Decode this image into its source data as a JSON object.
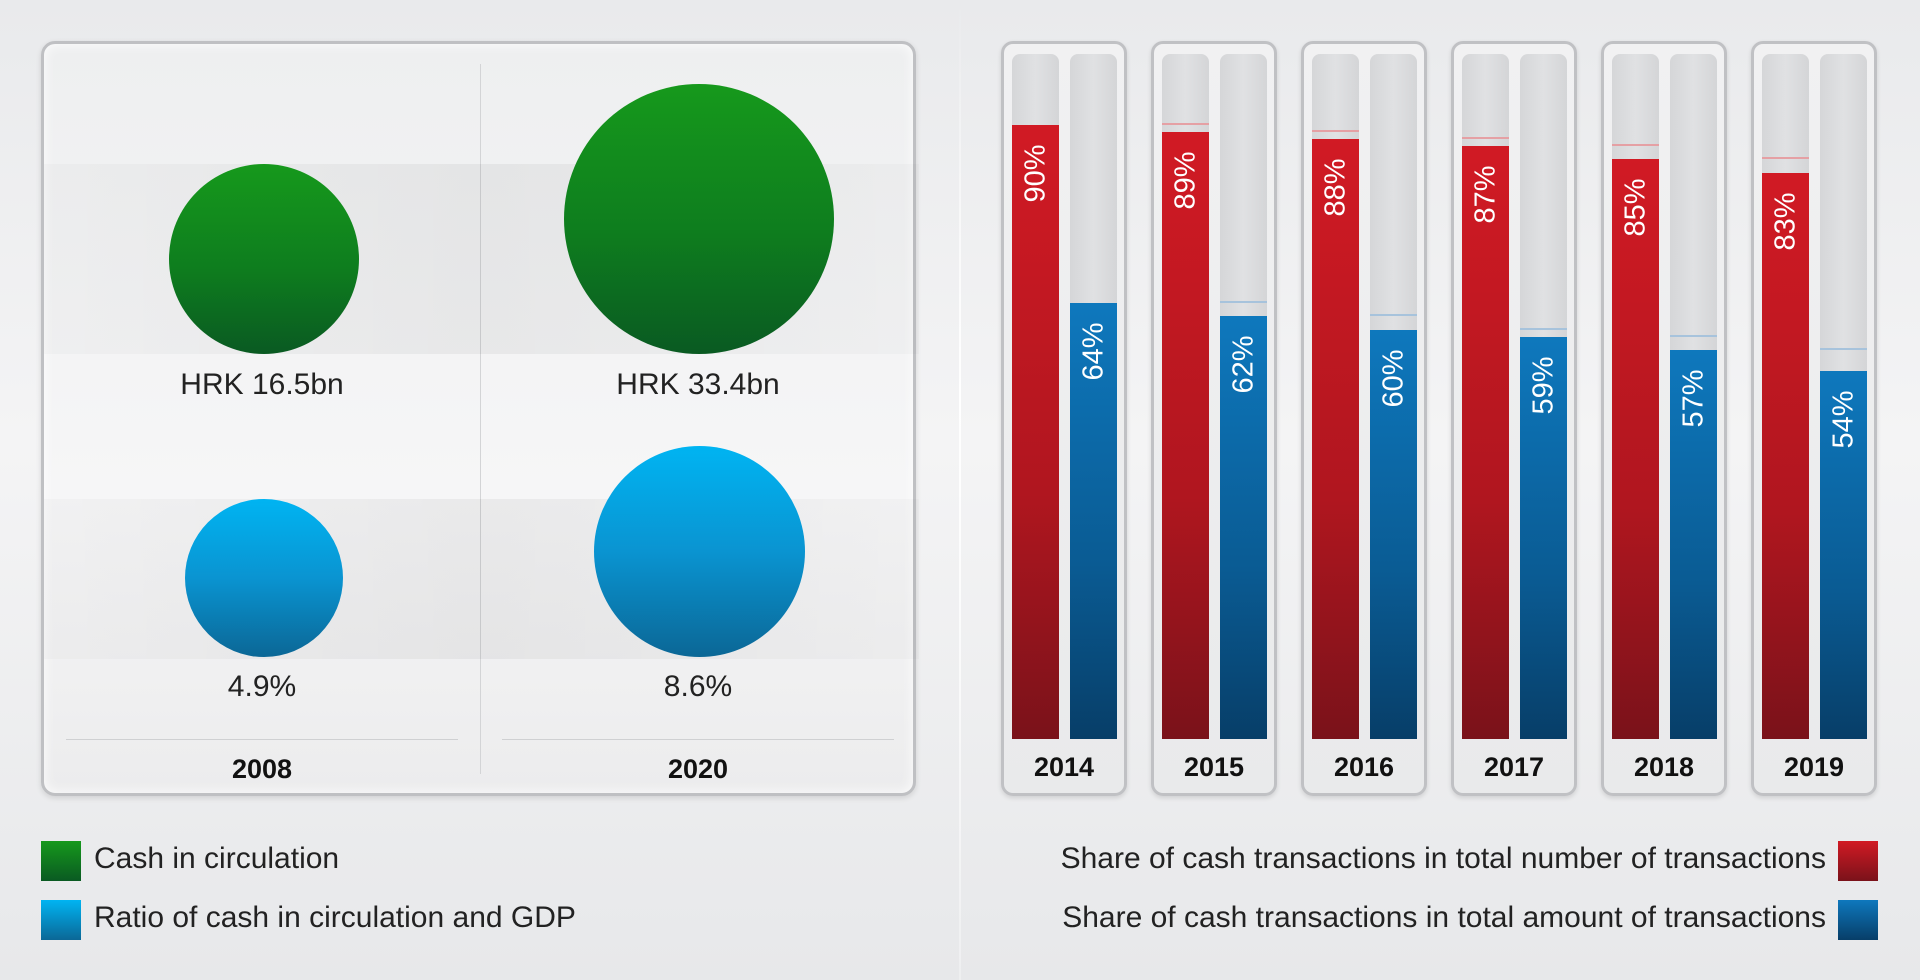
{
  "chart_data": [
    {
      "type": "bubble",
      "categories": [
        "2008",
        "2020"
      ],
      "series": [
        {
          "name": "Cash in circulation",
          "values": [
            16.5,
            33.4
          ],
          "labels": [
            "HRK 16.5bn",
            "HRK 33.4bn"
          ],
          "color": "#0e7d1e"
        },
        {
          "name": "Ratio of cash in circulation and GDP",
          "values": [
            4.9,
            8.6
          ],
          "labels": [
            "4.9%",
            "8.6%"
          ],
          "color": "#0a94d1"
        }
      ]
    },
    {
      "type": "bar",
      "categories": [
        "2014",
        "2015",
        "2016",
        "2017",
        "2018",
        "2019"
      ],
      "ylim": [
        0,
        100
      ],
      "series": [
        {
          "name": "Share of cash transactions in total number of transactions",
          "values": [
            90,
            89,
            88,
            87,
            85,
            83
          ],
          "labels": [
            "90%",
            "89%",
            "88%",
            "87%",
            "85%",
            "83%"
          ],
          "color": "#c4161f"
        },
        {
          "name": "Share of cash transactions in total amount of transactions",
          "values": [
            64,
            62,
            60,
            59,
            57,
            54
          ],
          "labels": [
            "64%",
            "62%",
            "60%",
            "59%",
            "57%",
            "54%"
          ],
          "color": "#0a6aa8"
        }
      ]
    }
  ]
}
